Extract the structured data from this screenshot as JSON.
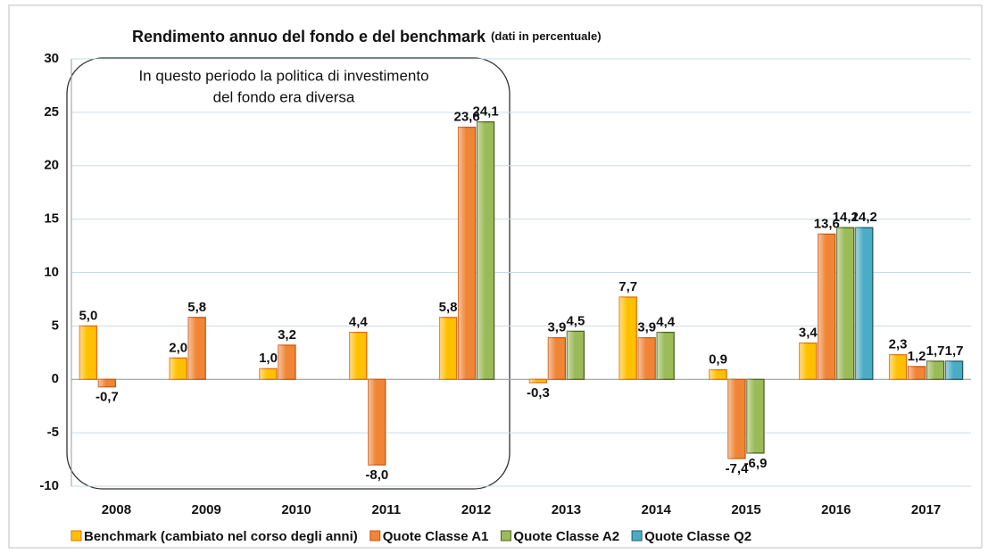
{
  "chart_data": {
    "type": "bar",
    "title": "Rendimento annuo del fondo e del benchmark",
    "subtitle": "(dati in percentuale)",
    "annotation": [
      "In questo periodo la politica di investimento",
      "del fondo era diversa"
    ],
    "categories": [
      "2008",
      "2009",
      "2010",
      "2011",
      "2012",
      "2013",
      "2014",
      "2015",
      "2016",
      "2017"
    ],
    "series": [
      {
        "name": "Benchmark (cambiato nel corso degli anni)",
        "color": "#ffc000",
        "border": "#e46c0a",
        "values": [
          5.0,
          2.0,
          1.0,
          4.4,
          5.8,
          -0.3,
          7.7,
          0.9,
          3.4,
          2.3
        ],
        "value_labels": [
          "5,0",
          "2,0",
          "1,0",
          "4,4",
          "5,8",
          "-0,3",
          "7,7",
          "0,9",
          "3,4",
          "2,3"
        ]
      },
      {
        "name": "Quote Classe A1",
        "color": "#f08536",
        "border": "#c55a11",
        "values": [
          -0.7,
          5.8,
          3.2,
          -8.0,
          23.6,
          3.9,
          3.9,
          -7.4,
          13.6,
          1.2
        ],
        "value_labels": [
          "-0,7",
          "5,8",
          "3,2",
          "-8,0",
          "23,6",
          "3,9",
          "3,9",
          "-7,4",
          "13,6",
          "1,2"
        ]
      },
      {
        "name": "Quote Classe A2",
        "color": "#9bbb59",
        "border": "#4f6228",
        "values": [
          null,
          null,
          null,
          null,
          24.1,
          4.5,
          4.4,
          -6.9,
          14.2,
          1.7
        ],
        "value_labels": [
          null,
          null,
          null,
          null,
          "24,1",
          "4,5",
          "4,4",
          "-6,9",
          "14,2",
          "1,7"
        ]
      },
      {
        "name": "Quote Classe Q2",
        "color": "#4bacc6",
        "border": "#215968",
        "values": [
          null,
          null,
          null,
          null,
          null,
          null,
          null,
          null,
          14.2,
          1.7
        ],
        "value_labels": [
          null,
          null,
          null,
          null,
          null,
          null,
          null,
          null,
          "14,2",
          "1,7"
        ]
      }
    ],
    "ylim": [
      -10,
      30
    ],
    "yticks": [
      -10,
      -5,
      0,
      5,
      10,
      15,
      20,
      25,
      30
    ],
    "grid": true
  }
}
